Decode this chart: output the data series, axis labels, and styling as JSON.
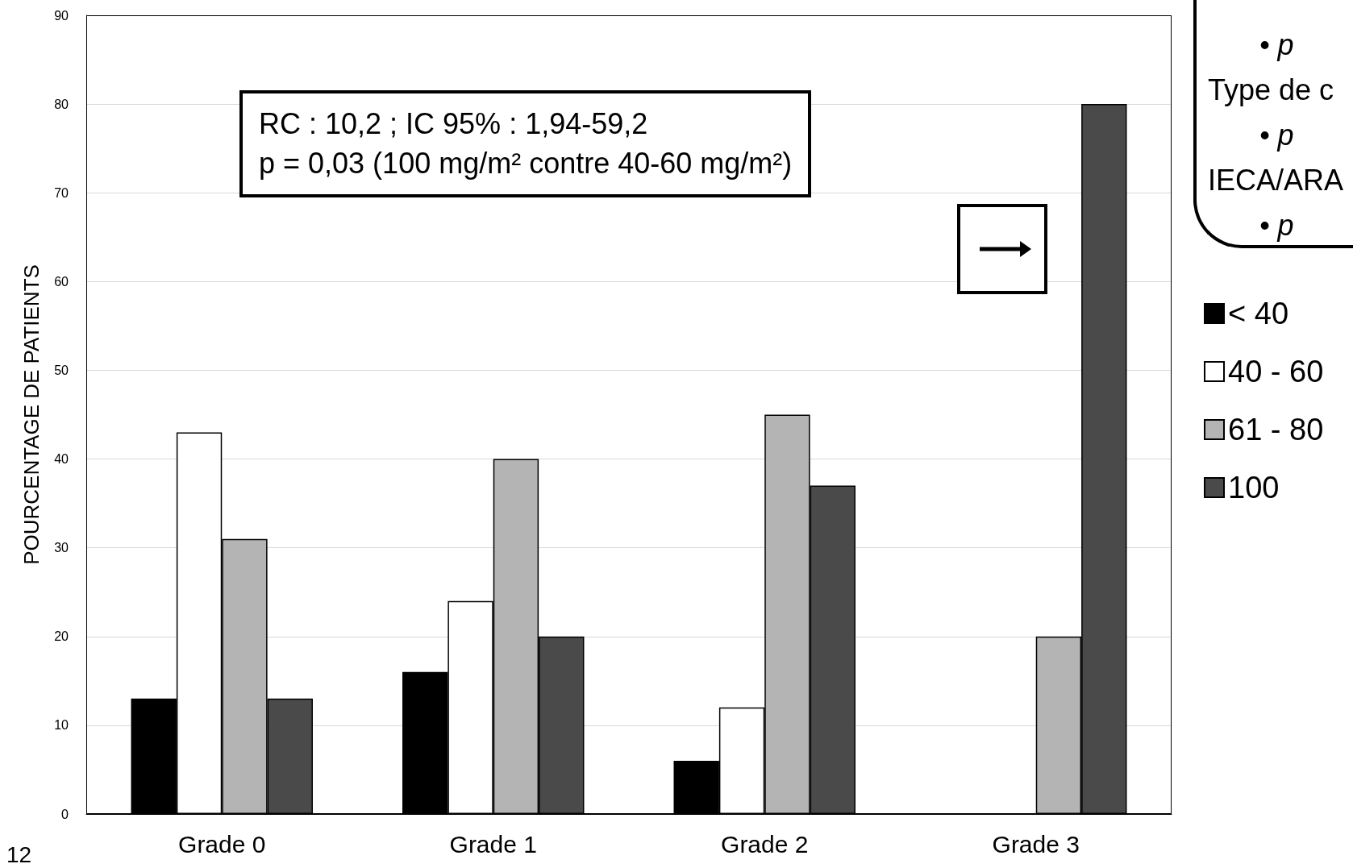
{
  "chart_data": {
    "type": "bar",
    "ylabel": "POURCENTAGE DE PATIENTS",
    "categories": [
      "Grade 0",
      "Grade 1",
      "Grade 2",
      "Grade 3"
    ],
    "series": [
      {
        "name": "< 40",
        "color": "#000000",
        "values": [
          13,
          16,
          6,
          0
        ]
      },
      {
        "name": "40 - 60",
        "color": "#ffffff",
        "values": [
          43,
          24,
          12,
          0
        ]
      },
      {
        "name": "61 - 80",
        "color": "#b4b4b4",
        "values": [
          31,
          40,
          45,
          20
        ]
      },
      {
        "name": "100",
        "color": "#4a4a4a",
        "values": [
          13,
          20,
          37,
          80
        ]
      }
    ],
    "ylim": [
      0,
      90
    ],
    "yticks": [
      0,
      10,
      20,
      30,
      40,
      50,
      60,
      70,
      80,
      90
    ],
    "grid": "y",
    "legend": "right",
    "annotations": [
      "RC : 10,2 ; IC 95% : 1,94-59,2",
      "p = 0,03 (100 mg/m² contre 40-60 mg/m²)",
      "12",
      "•  p",
      "Type de c",
      "•  p",
      "IECA/ARA",
      "•  p"
    ]
  }
}
